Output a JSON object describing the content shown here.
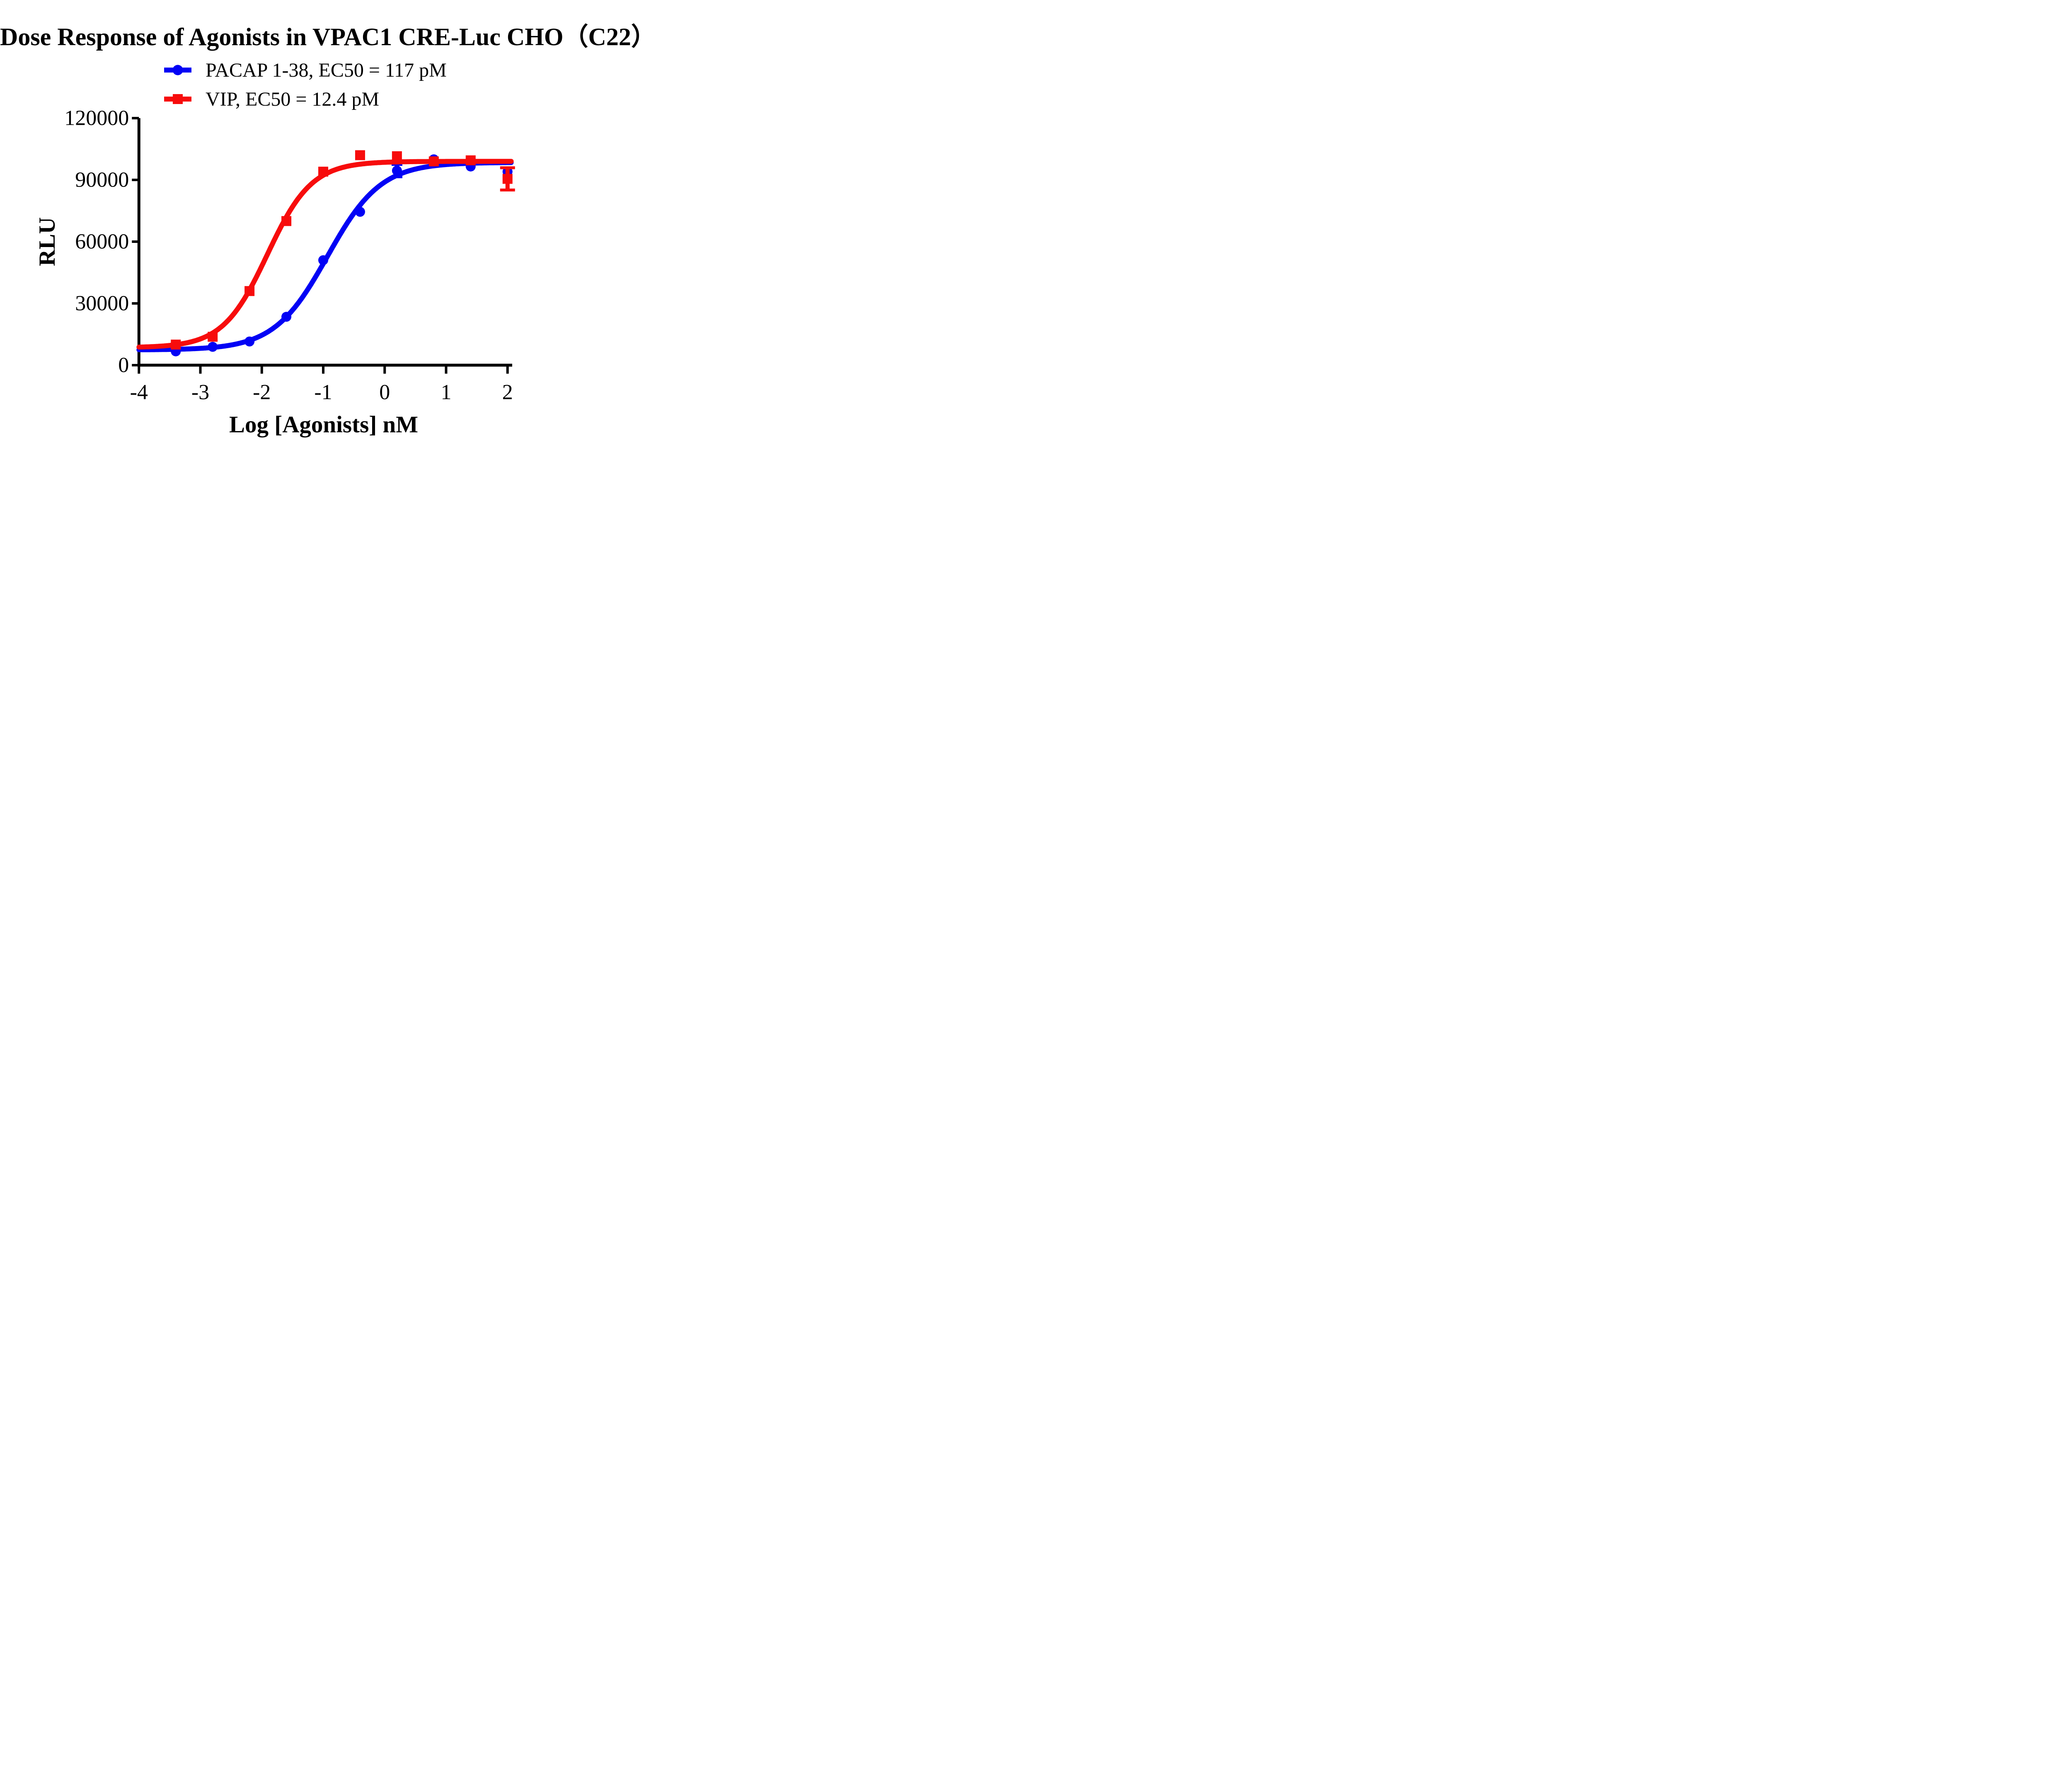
{
  "chart_data": {
    "type": "line",
    "title": "Dose Response of Agonists in VPAC1 CRE-Luc CHO（C22）",
    "xlabel": "Log [Agonists] nM",
    "ylabel": "RLU",
    "xlim": [
      -4,
      2.07
    ],
    "ylim": [
      0,
      120000
    ],
    "x_ticks": [
      -4,
      -3,
      -2,
      -1,
      0,
      1,
      2
    ],
    "x_tick_labels": [
      "-4",
      "-3",
      "-2",
      "-1",
      "0",
      "1",
      "2"
    ],
    "y_ticks": [
      0,
      30000,
      60000,
      90000,
      120000
    ],
    "y_tick_labels": [
      "0",
      "30000",
      "60000",
      "90000",
      "120000"
    ],
    "grid": false,
    "legend_position": "top-center",
    "axis_color": "#000000",
    "series": [
      {
        "id": "pacap",
        "name": "PACAP 1-38, EC50 = 117 pM",
        "color": "#0202f5",
        "marker": "circle",
        "x": [
          -3.4,
          -2.8,
          -2.2,
          -1.6,
          -1.0,
          -0.4,
          0.2,
          0.8,
          1.4,
          2.0
        ],
        "y": [
          6700,
          8900,
          11500,
          23500,
          51000,
          74500,
          94500,
          100000,
          96500,
          94000
        ],
        "yerr": [
          0,
          0,
          0,
          0,
          0,
          0,
          3000,
          0,
          0,
          0
        ],
        "fit": {
          "bottom": 7400,
          "top": 98500,
          "log_ec50": -0.93,
          "hill": 1.0
        }
      },
      {
        "id": "vip",
        "name": "VIP, EC50 = 12.4 pM",
        "color": "#f70c0c",
        "marker": "square",
        "x": [
          -3.4,
          -2.8,
          -2.2,
          -1.6,
          -1.0,
          -0.4,
          0.2,
          0.8,
          1.4,
          2.0
        ],
        "y": [
          10000,
          13800,
          36000,
          70000,
          94000,
          102000,
          101500,
          99000,
          99500,
          90500
        ],
        "yerr": [
          0,
          0,
          0,
          0,
          0,
          0,
          0,
          0,
          0,
          5400
        ],
        "fit": {
          "bottom": 8500,
          "top": 99000,
          "log_ec50": -1.91,
          "hill": 1.2
        }
      }
    ]
  }
}
